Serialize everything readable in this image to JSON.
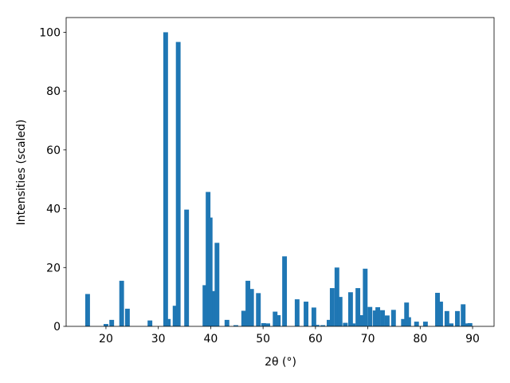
{
  "chart_data": {
    "type": "bar",
    "xlabel": "2θ (°)",
    "ylabel": "Intensities (scaled)",
    "color": "#1f77b4",
    "x": [
      16.5,
      20.0,
      21.1,
      23.0,
      24.1,
      28.4,
      31.4,
      31.9,
      33.2,
      33.8,
      35.4,
      38.9,
      39.5,
      39.9,
      40.7,
      41.2,
      43.1,
      44.8,
      46.3,
      47.1,
      47.8,
      49.1,
      50.1,
      50.9,
      52.3,
      52.9,
      54.1,
      56.5,
      58.2,
      59.7,
      60.3,
      61.4,
      62.6,
      63.2,
      64.1,
      64.7,
      65.7,
      66.7,
      67.2,
      68.1,
      68.9,
      69.5,
      70.4,
      71.4,
      71.9,
      72.8,
      73.7,
      74.9,
      76.8,
      77.4,
      77.8,
      79.3,
      81.0,
      83.3,
      83.9,
      85.1,
      85.9,
      87.1,
      88.2,
      88.9,
      89.5
    ],
    "values": [
      11,
      0.8,
      2.2,
      15.5,
      6,
      2,
      100,
      2.5,
      7,
      96.7,
      39.7,
      14,
      45.7,
      37,
      12,
      28.4,
      2.2,
      0.4,
      5.3,
      15.5,
      12.7,
      11.3,
      1.1,
      1,
      5,
      3.8,
      23.8,
      9.2,
      8.4,
      6.4,
      0.5,
      0.4,
      2.2,
      13,
      20,
      10,
      1.2,
      11.6,
      1,
      13,
      3.8,
      19.6,
      6.6,
      5.4,
      6.5,
      5.5,
      3.7,
      5.6,
      2.5,
      8.1,
      3.1,
      1.6,
      1.6,
      11.4,
      8.4,
      5.2,
      1,
      5.2,
      7.5,
      1,
      1.1
    ],
    "xlim": [
      12.4,
      94.1
    ],
    "ylim": [
      0,
      105
    ],
    "xticks": [
      20,
      30,
      40,
      50,
      60,
      70,
      80,
      90
    ],
    "yticks": [
      0,
      20,
      40,
      60,
      80,
      100
    ]
  }
}
